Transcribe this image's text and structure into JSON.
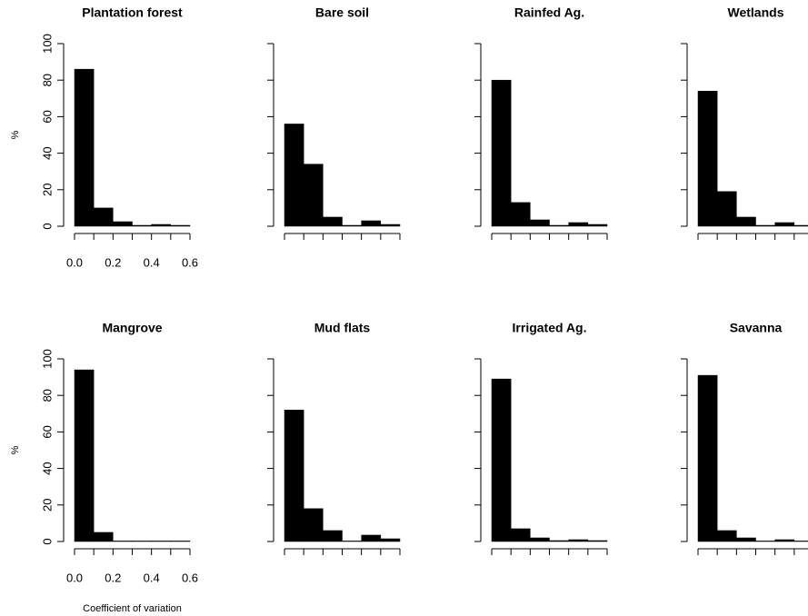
{
  "chart_data": [
    {
      "type": "histogram",
      "title": "Plantation forest",
      "ylabel": "%",
      "bins": [
        0,
        0.1,
        0.2,
        0.3,
        0.4,
        0.5,
        0.6
      ],
      "values": [
        86,
        10,
        2.5,
        0.5,
        1,
        0.5
      ],
      "color": "#000000",
      "xlim": [
        0,
        0.6
      ],
      "ylim": [
        0,
        100
      ],
      "xticks": [
        {
          "value": 0,
          "label": "0.0"
        },
        {
          "value": 0.2,
          "label": "0.2"
        },
        {
          "value": 0.4,
          "label": "0.4"
        },
        {
          "value": 0.6,
          "label": "0.6"
        }
      ],
      "yticks": [
        0,
        20,
        40,
        60,
        80,
        100
      ],
      "tick_labels": true
    },
    {
      "type": "histogram",
      "title": "Bare soil",
      "bins": [
        0,
        0.1,
        0.2,
        0.3,
        0.4,
        0.5,
        0.6
      ],
      "values": [
        56,
        34,
        5,
        0.5,
        3,
        1
      ],
      "color": "#000000",
      "xlim": [
        0,
        0.6
      ],
      "ylim": [
        0,
        100
      ],
      "yticks": [
        0,
        20,
        40,
        60,
        80,
        100
      ],
      "tick_labels": false
    },
    {
      "type": "histogram",
      "title": "Rainfed Ag.",
      "bins": [
        0,
        0.1,
        0.2,
        0.3,
        0.4,
        0.5,
        0.6
      ],
      "values": [
        80,
        13,
        3.5,
        0.5,
        2,
        1
      ],
      "color": "#000000",
      "xlim": [
        0,
        0.6
      ],
      "ylim": [
        0,
        100
      ],
      "yticks": [
        0,
        20,
        40,
        60,
        80,
        100
      ],
      "tick_labels": false
    },
    {
      "type": "histogram",
      "title": "Wetlands",
      "bins": [
        0,
        0.1,
        0.2,
        0.3,
        0.4,
        0.5,
        0.6
      ],
      "values": [
        74,
        19,
        5,
        0.5,
        2,
        0.5
      ],
      "color": "#000000",
      "xlim": [
        0,
        0.6
      ],
      "ylim": [
        0,
        100
      ],
      "yticks": [
        0,
        20,
        40,
        60,
        80,
        100
      ],
      "tick_labels": false
    },
    {
      "type": "histogram",
      "title": "Mangrove",
      "ylabel": "%",
      "xlabel": "Coefficient of variation",
      "bins": [
        0,
        0.1,
        0.2,
        0.3,
        0.4,
        0.5,
        0.6
      ],
      "values": [
        94,
        5,
        0.3,
        0.3,
        0.3,
        0.3
      ],
      "color": "#000000",
      "xlim": [
        0,
        0.6
      ],
      "ylim": [
        0,
        100
      ],
      "xticks": [
        {
          "value": 0,
          "label": "0.0"
        },
        {
          "value": 0.2,
          "label": "0.2"
        },
        {
          "value": 0.4,
          "label": "0.4"
        },
        {
          "value": 0.6,
          "label": "0.6"
        }
      ],
      "yticks": [
        0,
        20,
        40,
        60,
        80,
        100
      ],
      "tick_labels": true
    },
    {
      "type": "histogram",
      "title": "Mud flats",
      "bins": [
        0,
        0.1,
        0.2,
        0.3,
        0.4,
        0.5,
        0.6
      ],
      "values": [
        72,
        18,
        6,
        0.3,
        3.5,
        1.5
      ],
      "color": "#000000",
      "xlim": [
        0,
        0.6
      ],
      "ylim": [
        0,
        100
      ],
      "yticks": [
        0,
        20,
        40,
        60,
        80,
        100
      ],
      "tick_labels": false
    },
    {
      "type": "histogram",
      "title": "Irrigated Ag.",
      "bins": [
        0,
        0.1,
        0.2,
        0.3,
        0.4,
        0.5,
        0.6
      ],
      "values": [
        89,
        7,
        2,
        0.5,
        1,
        0.5
      ],
      "color": "#000000",
      "xlim": [
        0,
        0.6
      ],
      "ylim": [
        0,
        100
      ],
      "yticks": [
        0,
        20,
        40,
        60,
        80,
        100
      ],
      "tick_labels": false
    },
    {
      "type": "histogram",
      "title": "Savanna",
      "bins": [
        0,
        0.1,
        0.2,
        0.3,
        0.4,
        0.5,
        0.6
      ],
      "values": [
        91,
        6,
        2,
        0.3,
        1,
        0.3
      ],
      "color": "#000000",
      "xlim": [
        0,
        0.6
      ],
      "ylim": [
        0,
        100
      ],
      "yticks": [
        0,
        20,
        40,
        60,
        80,
        100
      ],
      "tick_labels": false
    }
  ]
}
